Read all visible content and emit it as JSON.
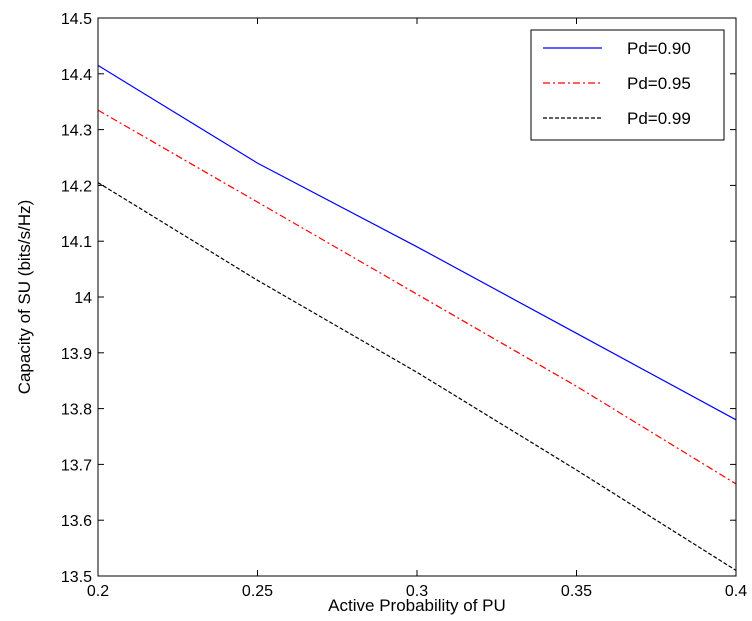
{
  "chart_data": {
    "type": "line",
    "title": "",
    "xlabel": "Active Probability of PU",
    "ylabel": "Capacity of SU (bits/s/Hz)",
    "xlim": [
      0.2,
      0.4
    ],
    "ylim": [
      13.5,
      14.5
    ],
    "xticks": [
      0.2,
      0.25,
      0.3,
      0.35,
      0.4
    ],
    "xtick_labels": [
      "0.2",
      "0.25",
      "0.3",
      "0.35",
      "0.4"
    ],
    "yticks": [
      13.5,
      13.6,
      13.7,
      13.8,
      13.9,
      14.0,
      14.1,
      14.2,
      14.3,
      14.4,
      14.5
    ],
    "ytick_labels": [
      "13.5",
      "13.6",
      "13.7",
      "13.8",
      "13.9",
      "14",
      "14.1",
      "14.2",
      "14.3",
      "14.4",
      "14.5"
    ],
    "grid": false,
    "legend_position": "top-right",
    "series": [
      {
        "name": "Pd=0.90",
        "color": "#0000ff",
        "style": "solid",
        "x": [
          0.2,
          0.25,
          0.3,
          0.35,
          0.4
        ],
        "y": [
          14.415,
          14.24,
          14.09,
          13.935,
          13.78
        ]
      },
      {
        "name": "Pd=0.95",
        "color": "#ff0000",
        "style": "dash-dot",
        "x": [
          0.2,
          0.25,
          0.3,
          0.35,
          0.4
        ],
        "y": [
          14.335,
          14.17,
          14.005,
          13.84,
          13.665
        ]
      },
      {
        "name": "Pd=0.99",
        "color": "#000000",
        "style": "dashed",
        "x": [
          0.2,
          0.25,
          0.3,
          0.35,
          0.4
        ],
        "y": [
          14.205,
          14.03,
          13.865,
          13.69,
          13.51
        ]
      }
    ]
  }
}
